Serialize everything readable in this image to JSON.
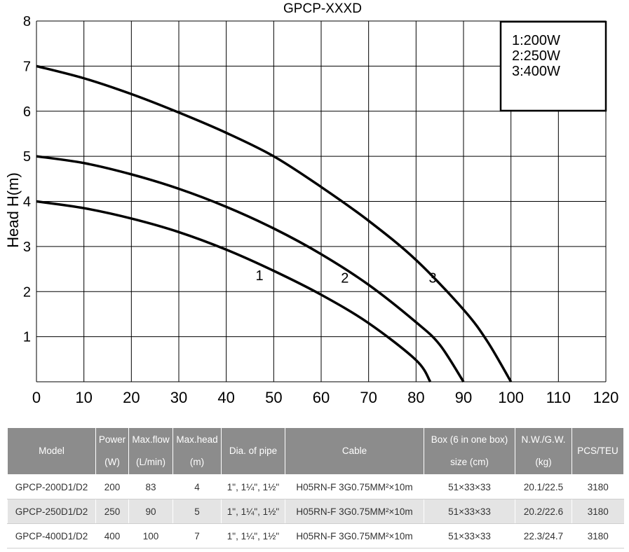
{
  "chart_data": {
    "type": "line",
    "title": "GPCP-XXXD",
    "xlabel": "",
    "ylabel": "Head H(m)",
    "xlim": [
      0,
      120
    ],
    "ylim": [
      0,
      8
    ],
    "x_ticks": [
      "0",
      "10",
      "20",
      "30",
      "40",
      "50",
      "60",
      "70",
      "80",
      "90",
      "100",
      "110",
      "120"
    ],
    "y_ticks": [
      "1",
      "2",
      "3",
      "4",
      "5",
      "6",
      "7",
      "8"
    ],
    "grid": true,
    "legend": {
      "position": "top-right",
      "entries": [
        "1:200W",
        "2:250W",
        "3:400W"
      ]
    },
    "series": [
      {
        "name": "1",
        "x": [
          0,
          10,
          20,
          30,
          40,
          50,
          60,
          70,
          80,
          83
        ],
        "y": [
          4.0,
          3.85,
          3.62,
          3.32,
          2.93,
          2.46,
          1.93,
          1.3,
          0.48,
          0
        ]
      },
      {
        "name": "2",
        "x": [
          0,
          10,
          20,
          30,
          40,
          50,
          60,
          70,
          80,
          85,
          90
        ],
        "y": [
          5.0,
          4.85,
          4.6,
          4.28,
          3.88,
          3.4,
          2.83,
          2.15,
          1.32,
          0.82,
          0
        ]
      },
      {
        "name": "3",
        "x": [
          0,
          10,
          20,
          30,
          40,
          50,
          60,
          70,
          80,
          90,
          95,
          100
        ],
        "y": [
          7.0,
          6.73,
          6.38,
          5.97,
          5.52,
          5.0,
          4.32,
          3.57,
          2.7,
          1.6,
          0.9,
          0
        ]
      }
    ],
    "curve_label_positions": [
      {
        "label": "1",
        "x": 47,
        "y": 2.25
      },
      {
        "label": "2",
        "x": 65,
        "y": 2.2
      },
      {
        "label": "3",
        "x": 83.5,
        "y": 2.2
      }
    ],
    "colors": {
      "curve": "#000000",
      "grid": "#000000"
    }
  },
  "table": {
    "headers": [
      {
        "l1": "Model",
        "l2": ""
      },
      {
        "l1": "Power",
        "l2": "(W)"
      },
      {
        "l1": "Max.flow",
        "l2": "(L/min)"
      },
      {
        "l1": "Max.head",
        "l2": "(m)"
      },
      {
        "l1": "Dia. of pipe",
        "l2": ""
      },
      {
        "l1": "Cable",
        "l2": ""
      },
      {
        "l1": "Box (6 in one box)",
        "l2": "size (cm)"
      },
      {
        "l1": "N.W./G.W.",
        "l2": "(kg)"
      },
      {
        "l1": "PCS/TEU",
        "l2": ""
      }
    ],
    "rows": [
      [
        "GPCP-200D1/D2",
        "200",
        "83",
        "4",
        "1\", 1¼\", 1½\"",
        "H05RN-F 3G0.75MM²×10m",
        "51×33×33",
        "20.1/22.5",
        "3180"
      ],
      [
        "GPCP-250D1/D2",
        "250",
        "90",
        "5",
        "1\", 1¼\", 1½\"",
        "H05RN-F 3G0.75MM²×10m",
        "51×33×33",
        "20.2/22.6",
        "3180"
      ],
      [
        "GPCP-400D1/D2",
        "400",
        "100",
        "7",
        "1\", 1¼\", 1½\"",
        "H05RN-F 3G0.75MM²×10m",
        "51×33×33",
        "22.3/24.7",
        "3180"
      ]
    ],
    "colors": {
      "header_bg": "#8c8c8c",
      "header_text": "#ffffff",
      "alt_row_bg": "#e4e4e4"
    }
  }
}
